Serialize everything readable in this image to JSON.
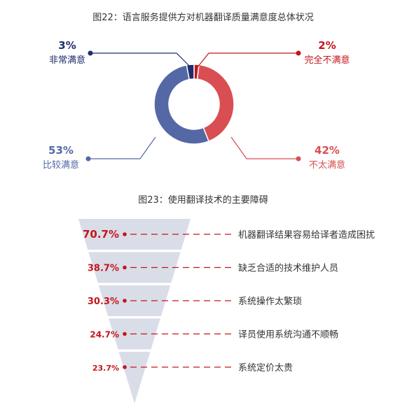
{
  "colors": {
    "navy": "#1f2d6e",
    "blue": "#5468a6",
    "red": "#d94e52",
    "darkred": "#c4161c",
    "funnel": "#d9dde8",
    "text": "#333333"
  },
  "chart_data": [
    {
      "type": "pie",
      "title": "图22：语言服务提供方对机器翻译质量满意度总体状况",
      "series": [
        {
          "label": "完全不满意",
          "percent": "2%",
          "value": 2,
          "color": "#c4161c"
        },
        {
          "label": "不太满意",
          "percent": "42%",
          "value": 42,
          "color": "#d94e52"
        },
        {
          "label": "比较满意",
          "percent": "53%",
          "value": 53,
          "color": "#5468a6"
        },
        {
          "label": "非常满意",
          "percent": "3%",
          "value": 3,
          "color": "#1f2d6e"
        }
      ]
    },
    {
      "type": "bar",
      "title": "图23：使用翻译技术的主要障碍",
      "items": [
        {
          "value": 70.7,
          "value_label": "70.7%",
          "label": "机器翻译结果容易给译者造成困扰"
        },
        {
          "value": 38.7,
          "value_label": "38.7%",
          "label": "缺乏合适的技术维护人员"
        },
        {
          "value": 30.3,
          "value_label": "30.3%",
          "label": "系统操作太繁琐"
        },
        {
          "value": 24.7,
          "value_label": "24.7%",
          "label": "译员使用系统沟通不顺畅"
        },
        {
          "value": 23.7,
          "value_label": "23.7%",
          "label": "系统定价太贵"
        }
      ]
    }
  ]
}
